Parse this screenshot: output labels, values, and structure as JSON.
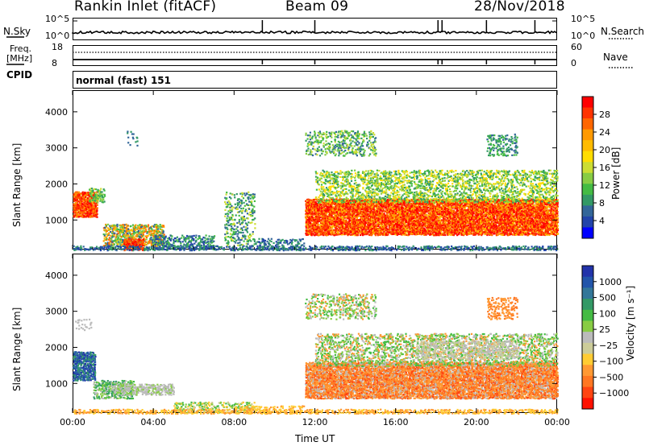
{
  "header": {
    "station": "Rankin Inlet (fitACF)",
    "beam": "Beam 09",
    "date": "28/Nov/2018"
  },
  "noise_panel": {
    "left_label": "N.Sky",
    "right_label": "N.Search",
    "ticks_left": [
      "10^5",
      "10^0"
    ],
    "ticks_right": [
      "10^5",
      "10^0"
    ]
  },
  "freq_panel": {
    "left_label_1": "Freq.",
    "left_label_2": "[MHz]",
    "right_label": "Nave",
    "ticks_left": [
      "18",
      "8"
    ],
    "ticks_right": [
      "60",
      "0"
    ]
  },
  "cpid_panel": {
    "label": "CPID",
    "value": "normal (fast) 151"
  },
  "chart_data": [
    {
      "type": "heatmap",
      "title": "",
      "ylabel": "Slant Range [km]",
      "xlabel": "",
      "ylim": [
        180,
        4600
      ],
      "yticks": [
        "1000",
        "2000",
        "3000",
        "4000"
      ],
      "xticks": [
        "00:00",
        "04:00",
        "08:00",
        "12:00",
        "16:00",
        "20:00",
        "00:00"
      ],
      "colorbar": {
        "label": "Power [dB]",
        "ticks": [
          "28",
          "24",
          "20",
          "16",
          "12",
          "8",
          "4"
        ],
        "colors": [
          "#ff0000",
          "#ff3300",
          "#ff6600",
          "#ff9900",
          "#ffbb00",
          "#ffdd00",
          "#ccdd33",
          "#88cc44",
          "#44bb44",
          "#339966",
          "#336699",
          "#2244aa",
          "#0000ff"
        ]
      }
    },
    {
      "type": "heatmap",
      "title": "",
      "ylabel": "Slant Range [km]",
      "xlabel": "Time UT",
      "ylim": [
        180,
        4600
      ],
      "yticks": [
        "1000",
        "2000",
        "3000",
        "4000"
      ],
      "xticks": [
        "00:00",
        "04:00",
        "08:00",
        "12:00",
        "16:00",
        "20:00",
        "00:00"
      ],
      "colorbar": {
        "label": "Velocity [m s⁻¹]",
        "ticks": [
          "1000",
          "500",
          "100",
          "25",
          "−25",
          "−100",
          "−500",
          "−1000"
        ],
        "colors": [
          "#2233aa",
          "#2255aa",
          "#337799",
          "#339966",
          "#44bb44",
          "#88cc44",
          "#bbbbbb",
          "#cccc99",
          "#ffcc33",
          "#ff9933",
          "#ff7722",
          "#ff4411",
          "#ff1100"
        ]
      }
    }
  ]
}
